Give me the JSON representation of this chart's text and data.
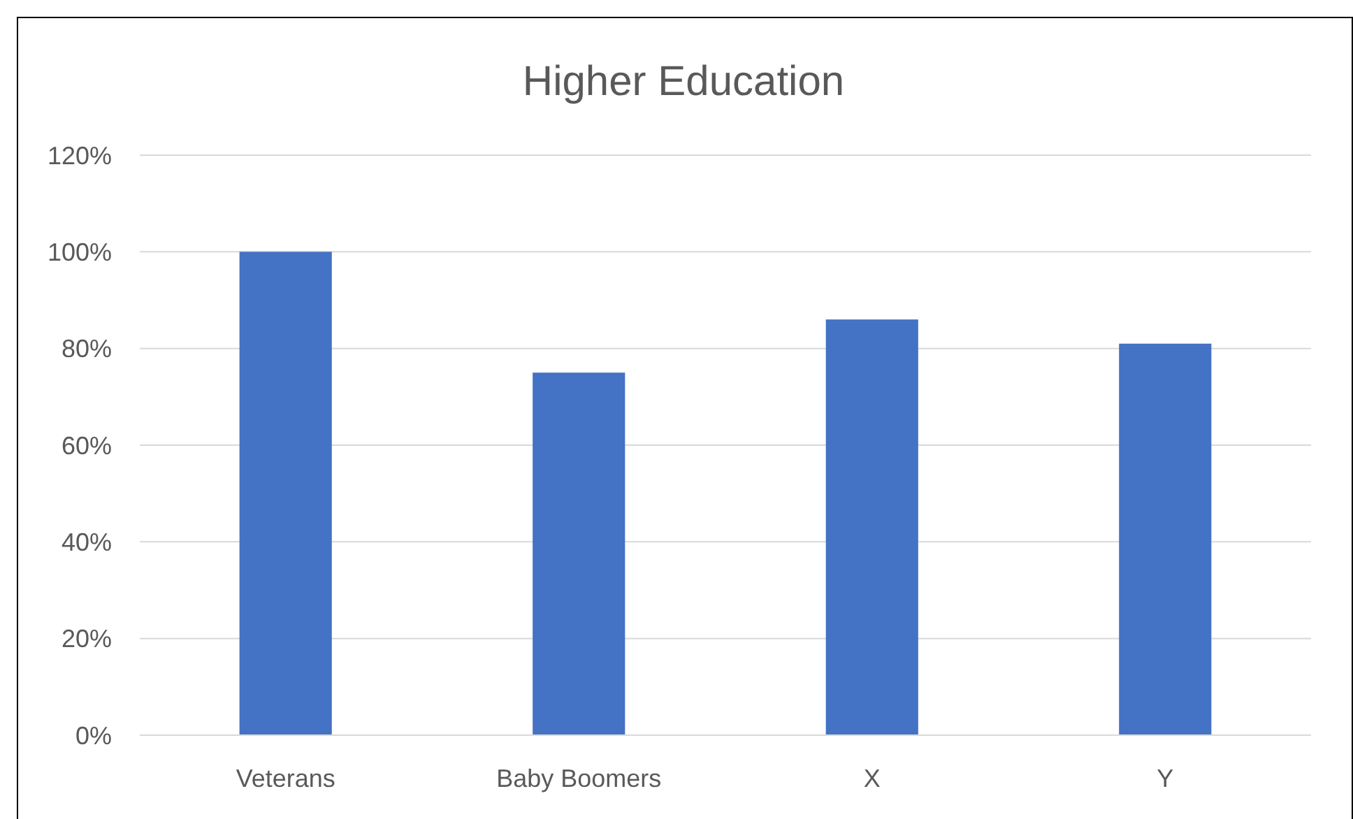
{
  "chart_data": {
    "type": "bar",
    "title": "Higher Education",
    "categories": [
      "Veterans",
      "Baby Boomers",
      "X",
      "Y"
    ],
    "values": [
      100,
      75,
      86,
      81
    ],
    "color": "#4472c4",
    "ylim": [
      0,
      120
    ],
    "yticks": [
      {
        "value": 0,
        "label": "0%"
      },
      {
        "value": 20,
        "label": "20%"
      },
      {
        "value": 40,
        "label": "40%"
      },
      {
        "value": 60,
        "label": "60%"
      },
      {
        "value": 80,
        "label": "80%"
      },
      {
        "value": 100,
        "label": "100%"
      },
      {
        "value": 120,
        "label": "120%"
      }
    ],
    "grid": "y"
  }
}
